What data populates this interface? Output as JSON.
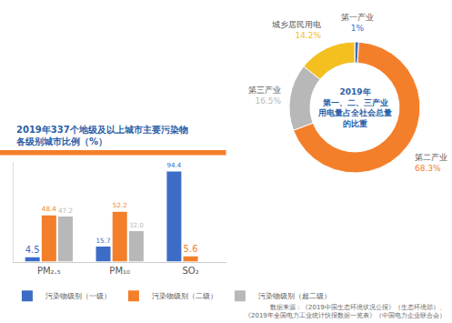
{
  "chart_data": [
    {
      "type": "bar",
      "title": "2019年337个地级及以上城市主要污染物\n各级别城市比例（%）",
      "categories": [
        "PM₂.₅",
        "PM₁₀",
        "SO₂"
      ],
      "series": [
        {
          "name": "污染物级别（一级）",
          "color": "#3d6cc7",
          "values": [
            4.5,
            15.7,
            94.4
          ],
          "value_labels": [
            "4.5",
            "15.7",
            "94.4"
          ]
        },
        {
          "name": "污染物级别（二级）",
          "color": "#f47f2a",
          "values": [
            48.4,
            52.2,
            5.6
          ],
          "value_labels": [
            "48.4",
            "52.2",
            "5.6"
          ]
        },
        {
          "name": "污染物级别（超二级）",
          "color": "#b8b8b8",
          "values": [
            47.2,
            32.0,
            null
          ],
          "value_labels": [
            "47.2",
            "32.0",
            null
          ]
        }
      ],
      "ylim": [
        0,
        105
      ],
      "data_labels": true,
      "tick_labels": "x",
      "legend": "bottom"
    },
    {
      "type": "pie",
      "title": "2019年\n第一、二、三产业\n用电量占全社会总量\n的比重",
      "categories": [
        "第一产业",
        "第二产业",
        "第三产业",
        "城乡居民用电"
      ],
      "values": [
        1,
        68.3,
        16.5,
        14.2
      ],
      "value_labels": [
        "1%",
        "68.3%",
        "16.5%",
        "14.2%"
      ],
      "colors": [
        "#3d6cc7",
        "#f47f2a",
        "#b8b8b8",
        "#f4c020"
      ],
      "data_labels": true
    }
  ],
  "source": "数据来源：《2019中国生态环境状况公报》（生态环境部）、\n《2019年全国电力工业统计快报数据一览表》（中国电力企业联合会）"
}
